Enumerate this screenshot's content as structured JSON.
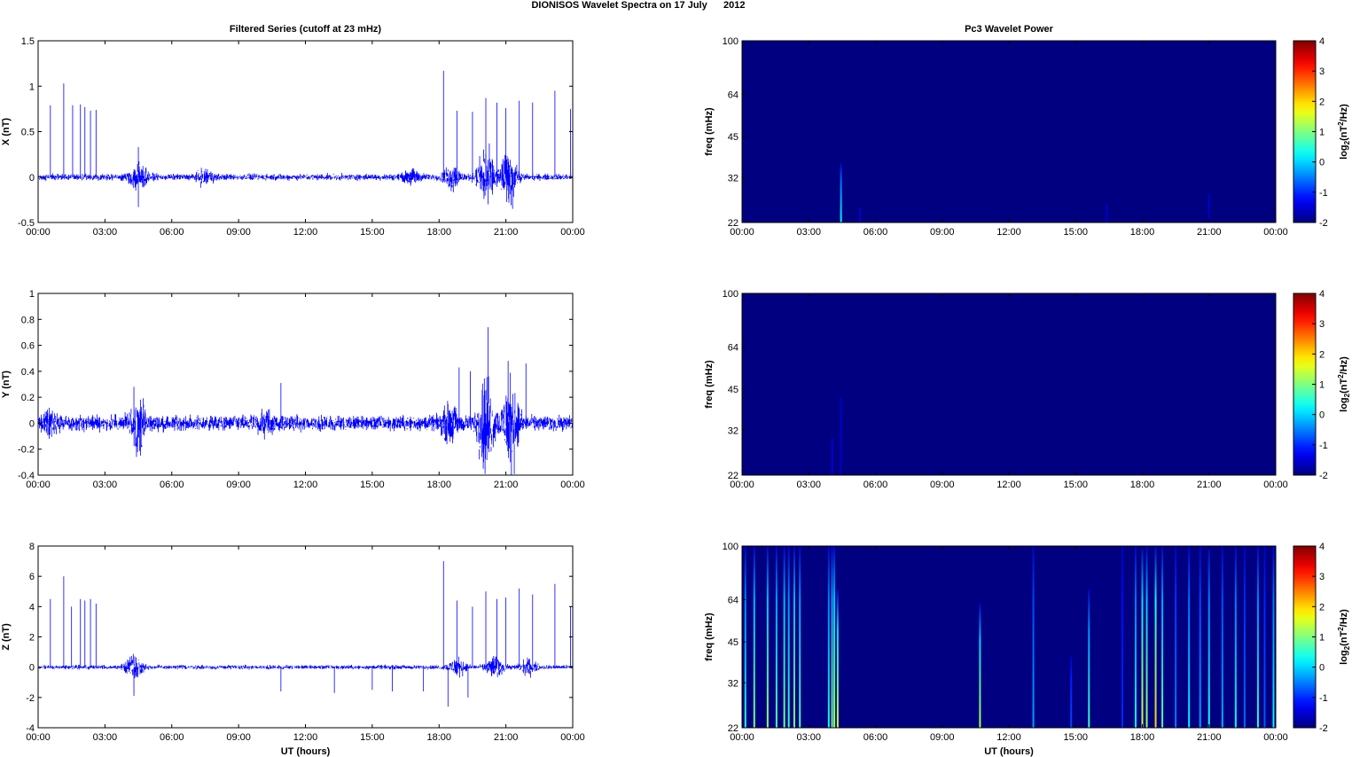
{
  "figure_title": "DIONISOS Wavelet Spectra on 17 July      2012",
  "chart_data": [
    {
      "type": "line",
      "panel": "X",
      "title": "Filtered Series (cutoff at 23 mHz)",
      "xlabel": "",
      "ylabel": "X (nT)",
      "xticks": [
        "00:00",
        "03:00",
        "06:00",
        "09:00",
        "12:00",
        "15:00",
        "18:00",
        "21:00",
        "00:00"
      ],
      "yticks": [
        "-0.5",
        "0",
        "0.5",
        "1",
        "1.5"
      ],
      "ylim": [
        -0.5,
        1.5
      ],
      "xlim_hours": [
        0,
        24
      ],
      "series_color": "#0000ff",
      "baseline_noise": 0.03,
      "bursts": [
        {
          "t": 4.5,
          "amp": 0.15
        },
        {
          "t": 7.5,
          "amp": 0.07
        },
        {
          "t": 16.8,
          "amp": 0.06
        },
        {
          "t": 18.6,
          "amp": 0.12
        },
        {
          "t": 20.1,
          "amp": 0.28
        },
        {
          "t": 21.1,
          "amp": 0.25
        }
      ],
      "spikes": [
        {
          "t": 0.55,
          "y": 0.79
        },
        {
          "t": 1.15,
          "y": 1.03
        },
        {
          "t": 1.55,
          "y": 0.79
        },
        {
          "t": 1.9,
          "y": 0.8
        },
        {
          "t": 2.1,
          "y": 0.77
        },
        {
          "t": 2.35,
          "y": 0.73
        },
        {
          "t": 2.6,
          "y": 0.74
        },
        {
          "t": 4.5,
          "y": 0.33
        },
        {
          "t": 18.2,
          "y": 1.17
        },
        {
          "t": 18.8,
          "y": 0.73
        },
        {
          "t": 19.5,
          "y": 0.72
        },
        {
          "t": 20.1,
          "y": 0.87
        },
        {
          "t": 20.6,
          "y": 0.82
        },
        {
          "t": 21.0,
          "y": 0.76
        },
        {
          "t": 21.6,
          "y": 0.84
        },
        {
          "t": 22.2,
          "y": 0.82
        },
        {
          "t": 23.2,
          "y": 0.95
        },
        {
          "t": 23.9,
          "y": 0.75
        },
        {
          "t": 4.5,
          "y": -0.33
        },
        {
          "t": 20.2,
          "y": -0.3
        },
        {
          "t": 21.3,
          "y": -0.35
        }
      ]
    },
    {
      "type": "line",
      "panel": "Y",
      "title": "",
      "xlabel": "",
      "ylabel": "Y (nT)",
      "xticks": [
        "00:00",
        "03:00",
        "06:00",
        "09:00",
        "12:00",
        "15:00",
        "18:00",
        "21:00",
        "00:00"
      ],
      "yticks": [
        "-0.4",
        "-0.2",
        "0",
        "0.2",
        "0.4",
        "0.6",
        "0.8",
        "1"
      ],
      "ylim": [
        -0.4,
        1.0
      ],
      "xlim_hours": [
        0,
        24
      ],
      "series_color": "#0000ff",
      "baseline_noise": 0.05,
      "bursts": [
        {
          "t": 0.5,
          "amp": 0.08
        },
        {
          "t": 4.5,
          "amp": 0.14
        },
        {
          "t": 10.2,
          "amp": 0.06
        },
        {
          "t": 18.5,
          "amp": 0.1
        },
        {
          "t": 20.1,
          "amp": 0.3
        },
        {
          "t": 21.2,
          "amp": 0.28
        }
      ],
      "spikes": [
        {
          "t": 4.3,
          "y": 0.28
        },
        {
          "t": 10.9,
          "y": 0.31
        },
        {
          "t": 18.9,
          "y": 0.43
        },
        {
          "t": 19.4,
          "y": 0.4
        },
        {
          "t": 20.2,
          "y": 0.74
        },
        {
          "t": 21.1,
          "y": 0.48
        },
        {
          "t": 21.9,
          "y": 0.46
        },
        {
          "t": 20.0,
          "y": -0.3
        },
        {
          "t": 21.2,
          "y": -0.3
        },
        {
          "t": 4.6,
          "y": -0.25
        }
      ]
    },
    {
      "type": "line",
      "panel": "Z",
      "title": "",
      "xlabel": "UT (hours)",
      "ylabel": "Z (nT)",
      "xticks": [
        "00:00",
        "03:00",
        "06:00",
        "09:00",
        "12:00",
        "15:00",
        "18:00",
        "21:00",
        "00:00"
      ],
      "yticks": [
        "-4",
        "-2",
        "0",
        "2",
        "4",
        "6",
        "8"
      ],
      "ylim": [
        -4,
        8
      ],
      "xlim_hours": [
        0,
        24
      ],
      "series_color": "#0000ff",
      "baseline_noise": 0.12,
      "bursts": [
        {
          "t": 4.3,
          "amp": 0.7
        },
        {
          "t": 18.8,
          "amp": 0.5
        },
        {
          "t": 20.5,
          "amp": 0.6
        },
        {
          "t": 22.0,
          "amp": 0.4
        }
      ],
      "spikes": [
        {
          "t": 0.55,
          "y": 4.5
        },
        {
          "t": 1.15,
          "y": 6.0
        },
        {
          "t": 1.5,
          "y": 4.0
        },
        {
          "t": 1.9,
          "y": 4.5
        },
        {
          "t": 2.1,
          "y": 4.4
        },
        {
          "t": 2.35,
          "y": 4.5
        },
        {
          "t": 2.6,
          "y": 4.2
        },
        {
          "t": 18.2,
          "y": 7.0
        },
        {
          "t": 18.8,
          "y": 4.4
        },
        {
          "t": 19.5,
          "y": 4.0
        },
        {
          "t": 20.1,
          "y": 5.0
        },
        {
          "t": 20.6,
          "y": 4.5
        },
        {
          "t": 21.0,
          "y": 4.6
        },
        {
          "t": 21.6,
          "y": 5.2
        },
        {
          "t": 22.2,
          "y": 4.8
        },
        {
          "t": 23.2,
          "y": 5.5
        },
        {
          "t": 23.9,
          "y": 4.0
        },
        {
          "t": 4.3,
          "y": -1.9
        },
        {
          "t": 10.9,
          "y": -1.6
        },
        {
          "t": 13.3,
          "y": -1.7
        },
        {
          "t": 15.0,
          "y": -1.5
        },
        {
          "t": 15.9,
          "y": -1.6
        },
        {
          "t": 18.4,
          "y": -2.6
        },
        {
          "t": 19.3,
          "y": -2.0
        },
        {
          "t": 17.3,
          "y": -1.6
        }
      ]
    },
    {
      "type": "heatmap",
      "panel": "X",
      "title": "Pc3 Wavelet Power",
      "xlabel": "",
      "ylabel": "freq (mHz)",
      "colorbar_label": "log2(nT2/Hz)",
      "colorbar_ticks": [
        "4",
        "3",
        "2",
        "1",
        "0",
        "-1",
        "-2"
      ],
      "clim": [
        -2,
        4
      ],
      "xticks": [
        "00:00",
        "03:00",
        "06:00",
        "09:00",
        "12:00",
        "15:00",
        "18:00",
        "21:00",
        "00:00"
      ],
      "yticks": [
        "100",
        "64",
        "45",
        "32",
        "22"
      ],
      "background_value": -2,
      "streaks": [
        {
          "t": 4.45,
          "value": 0.2,
          "fmax": 36
        },
        {
          "t": 5.3,
          "value": -1.6,
          "fmax": 25
        },
        {
          "t": 16.4,
          "value": -1.6,
          "fmax": 26
        },
        {
          "t": 21.0,
          "value": -1.6,
          "fmax": 28
        }
      ]
    },
    {
      "type": "heatmap",
      "panel": "Y",
      "title": "",
      "xlabel": "",
      "ylabel": "freq (mHz)",
      "colorbar_label": "log2(nT2/Hz)",
      "colorbar_ticks": [
        "4",
        "3",
        "2",
        "1",
        "0",
        "-1",
        "-2"
      ],
      "clim": [
        -2,
        4
      ],
      "xticks": [
        "00:00",
        "03:00",
        "06:00",
        "09:00",
        "12:00",
        "15:00",
        "18:00",
        "21:00",
        "00:00"
      ],
      "yticks": [
        "100",
        "64",
        "45",
        "32",
        "22"
      ],
      "background_value": -2,
      "streaks": [
        {
          "t": 4.05,
          "value": -1.5,
          "fmax": 30
        },
        {
          "t": 4.45,
          "value": -1.6,
          "fmax": 42
        }
      ]
    },
    {
      "type": "heatmap",
      "panel": "Z",
      "title": "",
      "xlabel": "UT (hours)",
      "ylabel": "freq (mHz)",
      "colorbar_label": "log2(nT2/Hz)",
      "colorbar_ticks": [
        "4",
        "3",
        "2",
        "1",
        "0",
        "-1",
        "-2"
      ],
      "clim": [
        -2,
        4
      ],
      "xticks": [
        "00:00",
        "03:00",
        "06:00",
        "09:00",
        "12:00",
        "15:00",
        "18:00",
        "21:00",
        "00:00"
      ],
      "yticks": [
        "100",
        "64",
        "45",
        "32",
        "22"
      ],
      "background_value": -2,
      "streaks": [
        {
          "t": 0.15,
          "value": 0.5,
          "fmax": 100
        },
        {
          "t": 0.55,
          "value": 1.0,
          "fmax": 100
        },
        {
          "t": 1.15,
          "value": 1.2,
          "fmax": 100
        },
        {
          "t": 1.55,
          "value": 0.8,
          "fmax": 100
        },
        {
          "t": 1.9,
          "value": 1.0,
          "fmax": 100
        },
        {
          "t": 2.1,
          "value": 0.6,
          "fmax": 100
        },
        {
          "t": 2.35,
          "value": 1.1,
          "fmax": 100
        },
        {
          "t": 2.6,
          "value": 0.7,
          "fmax": 100
        },
        {
          "t": 3.9,
          "value": 0.4,
          "fmax": 100
        },
        {
          "t": 4.05,
          "value": 0.9,
          "fmax": 100
        },
        {
          "t": 4.15,
          "value": 1.2,
          "fmax": 100
        },
        {
          "t": 4.3,
          "value": 1.5,
          "fmax": 70
        },
        {
          "t": 10.7,
          "value": 1.3,
          "fmax": 62
        },
        {
          "t": 13.1,
          "value": -0.3,
          "fmax": 100
        },
        {
          "t": 14.8,
          "value": -0.8,
          "fmax": 40
        },
        {
          "t": 15.6,
          "value": 0.6,
          "fmax": 70
        },
        {
          "t": 17.1,
          "value": -1.0,
          "fmax": 100
        },
        {
          "t": 17.7,
          "value": 0.3,
          "fmax": 100
        },
        {
          "t": 18.0,
          "value": 1.5,
          "fmax": 100
        },
        {
          "t": 18.2,
          "value": 1.2,
          "fmax": 100
        },
        {
          "t": 18.6,
          "value": 2.0,
          "fmax": 100
        },
        {
          "t": 18.9,
          "value": 0.8,
          "fmax": 100
        },
        {
          "t": 19.5,
          "value": -0.5,
          "fmax": 100
        },
        {
          "t": 20.1,
          "value": 0.2,
          "fmax": 100
        },
        {
          "t": 20.6,
          "value": -0.3,
          "fmax": 100
        },
        {
          "t": 21.0,
          "value": 0.4,
          "fmax": 100
        },
        {
          "t": 21.6,
          "value": -0.2,
          "fmax": 100
        },
        {
          "t": 22.2,
          "value": 0.3,
          "fmax": 100
        },
        {
          "t": 22.6,
          "value": -0.6,
          "fmax": 100
        },
        {
          "t": 23.2,
          "value": 0.5,
          "fmax": 100
        },
        {
          "t": 23.5,
          "value": -0.7,
          "fmax": 100
        },
        {
          "t": 23.9,
          "value": 0.3,
          "fmax": 100
        }
      ]
    }
  ]
}
